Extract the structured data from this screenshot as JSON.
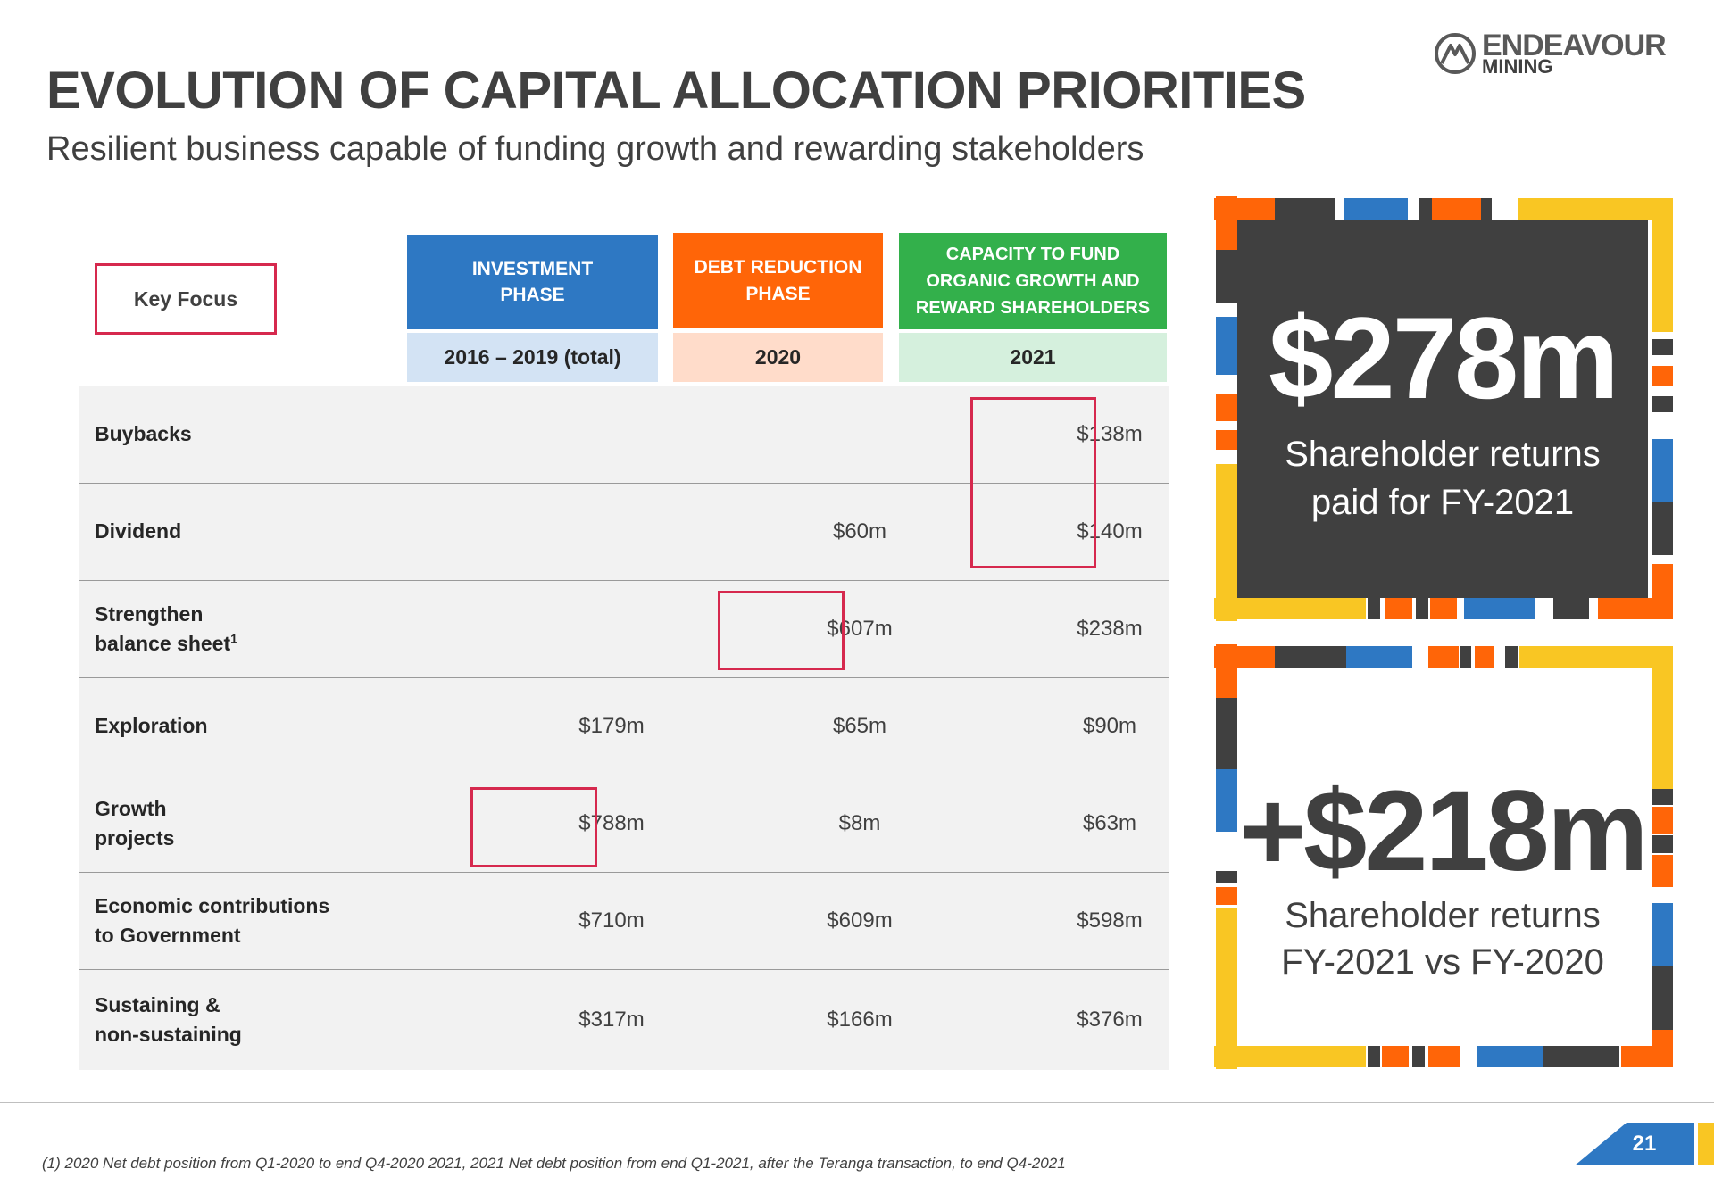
{
  "header": {
    "title": "EVOLUTION OF CAPITAL ALLOCATION PRIORITIES",
    "subtitle": "Resilient business capable of funding growth and rewarding stakeholders"
  },
  "logo": {
    "word1": "ENDEAVOUR",
    "word2": "MINING",
    "icon": "mountain-logo-icon"
  },
  "key_focus_label": "Key Focus",
  "phases": [
    {
      "label_line1": "INVESTMENT",
      "label_line2": "PHASE",
      "label_line3": "",
      "period": "2016 – 2019 (total)",
      "color": "#2e78c3"
    },
    {
      "label_line1": "DEBT REDUCTION",
      "label_line2": "PHASE",
      "label_line3": "",
      "period": "2020",
      "color": "#ff6508"
    },
    {
      "label_line1": "CAPACITY TO FUND",
      "label_line2": "ORGANIC GROWTH AND",
      "label_line3": "REWARD SHAREHOLDERS",
      "period": "2021",
      "color": "#33b04b"
    }
  ],
  "rows": [
    {
      "line1": "Buybacks",
      "line2": "",
      "sup": "",
      "values": [
        "",
        "",
        "$138m"
      ]
    },
    {
      "line1": "Dividend",
      "line2": "",
      "sup": "",
      "values": [
        "",
        "$60m",
        "$140m"
      ]
    },
    {
      "line1": "Strengthen",
      "line2": "balance sheet",
      "sup": "1",
      "values": [
        "",
        "$607m",
        "$238m"
      ]
    },
    {
      "line1": "Exploration",
      "line2": "",
      "sup": "",
      "values": [
        "$179m",
        "$65m",
        "$90m"
      ]
    },
    {
      "line1": "Growth",
      "line2": "projects",
      "sup": "",
      "values": [
        "$788m",
        "$8m",
        "$63m"
      ]
    },
    {
      "line1": "Economic contributions",
      "line2": "to Government",
      "sup": "",
      "values": [
        "$710m",
        "$609m",
        "$598m"
      ]
    },
    {
      "line1": "Sustaining &",
      "line2": "non-sustaining",
      "sup": "",
      "values": [
        "$317m",
        "$166m",
        "$376m"
      ]
    }
  ],
  "callouts": {
    "returns_2021": {
      "value": "$278m",
      "line1": "Shareholder returns",
      "line2": "paid for FY-2021"
    },
    "returns_growth": {
      "value": "+$218m",
      "line1": "Shareholder returns",
      "line2": "FY-2021 vs FY-2020"
    }
  },
  "colors": {
    "highlight": "#d6294e",
    "dark": "#404040",
    "blue": "#2e78c3",
    "orange": "#ff6508",
    "yellow": "#f9c623",
    "green": "#33b04b"
  },
  "footnote": "(1) 2020 Net debt position from Q1-2020 to end Q4-2020 2021, 2021 Net debt position from end Q1-2021, after the Teranga transaction, to end Q4-2021",
  "page_number": "21"
}
